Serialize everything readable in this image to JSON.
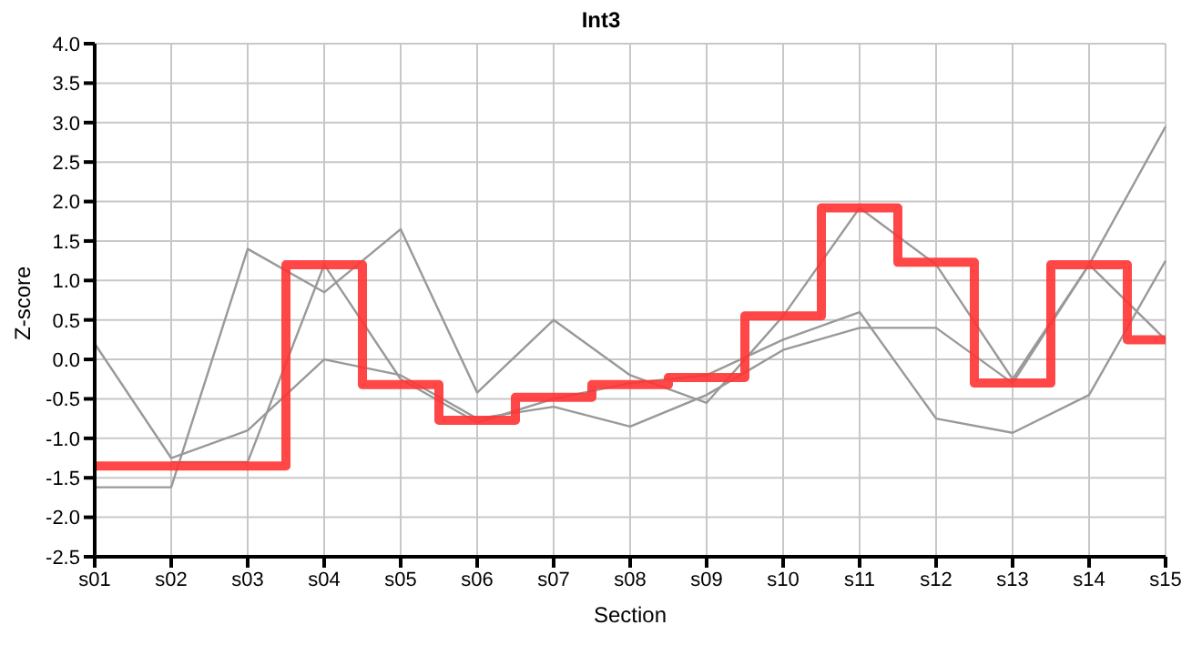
{
  "chart_data": {
    "type": "line",
    "title": "Int3",
    "xlabel": "Section",
    "ylabel": "Z-score",
    "categories": [
      "s01",
      "s02",
      "s03",
      "s04",
      "s05",
      "s06",
      "s07",
      "s08",
      "s09",
      "s10",
      "s11",
      "s12",
      "s13",
      "s14",
      "s15"
    ],
    "series": [
      {
        "type": "line",
        "color": "#999999",
        "values": [
          0.2,
          -1.25,
          -0.9,
          0.0,
          -0.2,
          -0.75,
          -0.6,
          -0.85,
          -0.45,
          0.12,
          0.4,
          0.4,
          -0.3,
          1.2,
          2.95
        ]
      },
      {
        "type": "line",
        "color": "#999999",
        "values": [
          -1.62,
          -1.62,
          1.4,
          0.85,
          1.65,
          -0.42,
          0.5,
          -0.2,
          -0.55,
          0.55,
          1.92,
          1.2,
          -0.25,
          1.2,
          0.25
        ]
      },
      {
        "type": "line",
        "color": "#999999",
        "values": [
          null,
          -1.3,
          -1.3,
          1.2,
          -0.25,
          -0.8,
          -0.5,
          -0.3,
          -0.2,
          0.25,
          0.6,
          -0.75,
          -0.93,
          -0.45,
          1.25
        ]
      },
      {
        "type": "step",
        "color": "#ff3333",
        "values": [
          -1.35,
          -1.35,
          -1.35,
          1.2,
          -0.32,
          -0.77,
          -0.48,
          -0.32,
          -0.23,
          0.55,
          1.92,
          1.23,
          -0.3,
          1.2,
          0.25
        ]
      }
    ],
    "ylim": [
      -2.5,
      4.0
    ],
    "yticks": [
      {
        "value": -2.5,
        "label": "-2.5"
      },
      {
        "value": -2,
        "label": "-2.0"
      },
      {
        "value": -1.5,
        "label": "-1.5"
      },
      {
        "value": -1,
        "label": "-1.0"
      },
      {
        "value": -0.5,
        "label": "-0.5"
      },
      {
        "value": 0,
        "label": "0.0"
      },
      {
        "value": 0.5,
        "label": "0.5"
      },
      {
        "value": 1,
        "label": "1.0"
      },
      {
        "value": 1.5,
        "label": "1.5"
      },
      {
        "value": 2,
        "label": "2.0"
      },
      {
        "value": 2.5,
        "label": "2.5"
      },
      {
        "value": 3,
        "label": "3.0"
      },
      {
        "value": 3.5,
        "label": "3.5"
      },
      {
        "value": 4,
        "label": "4.0"
      }
    ],
    "grid": true,
    "legend": false,
    "marker": "none",
    "line_style": "solid"
  }
}
